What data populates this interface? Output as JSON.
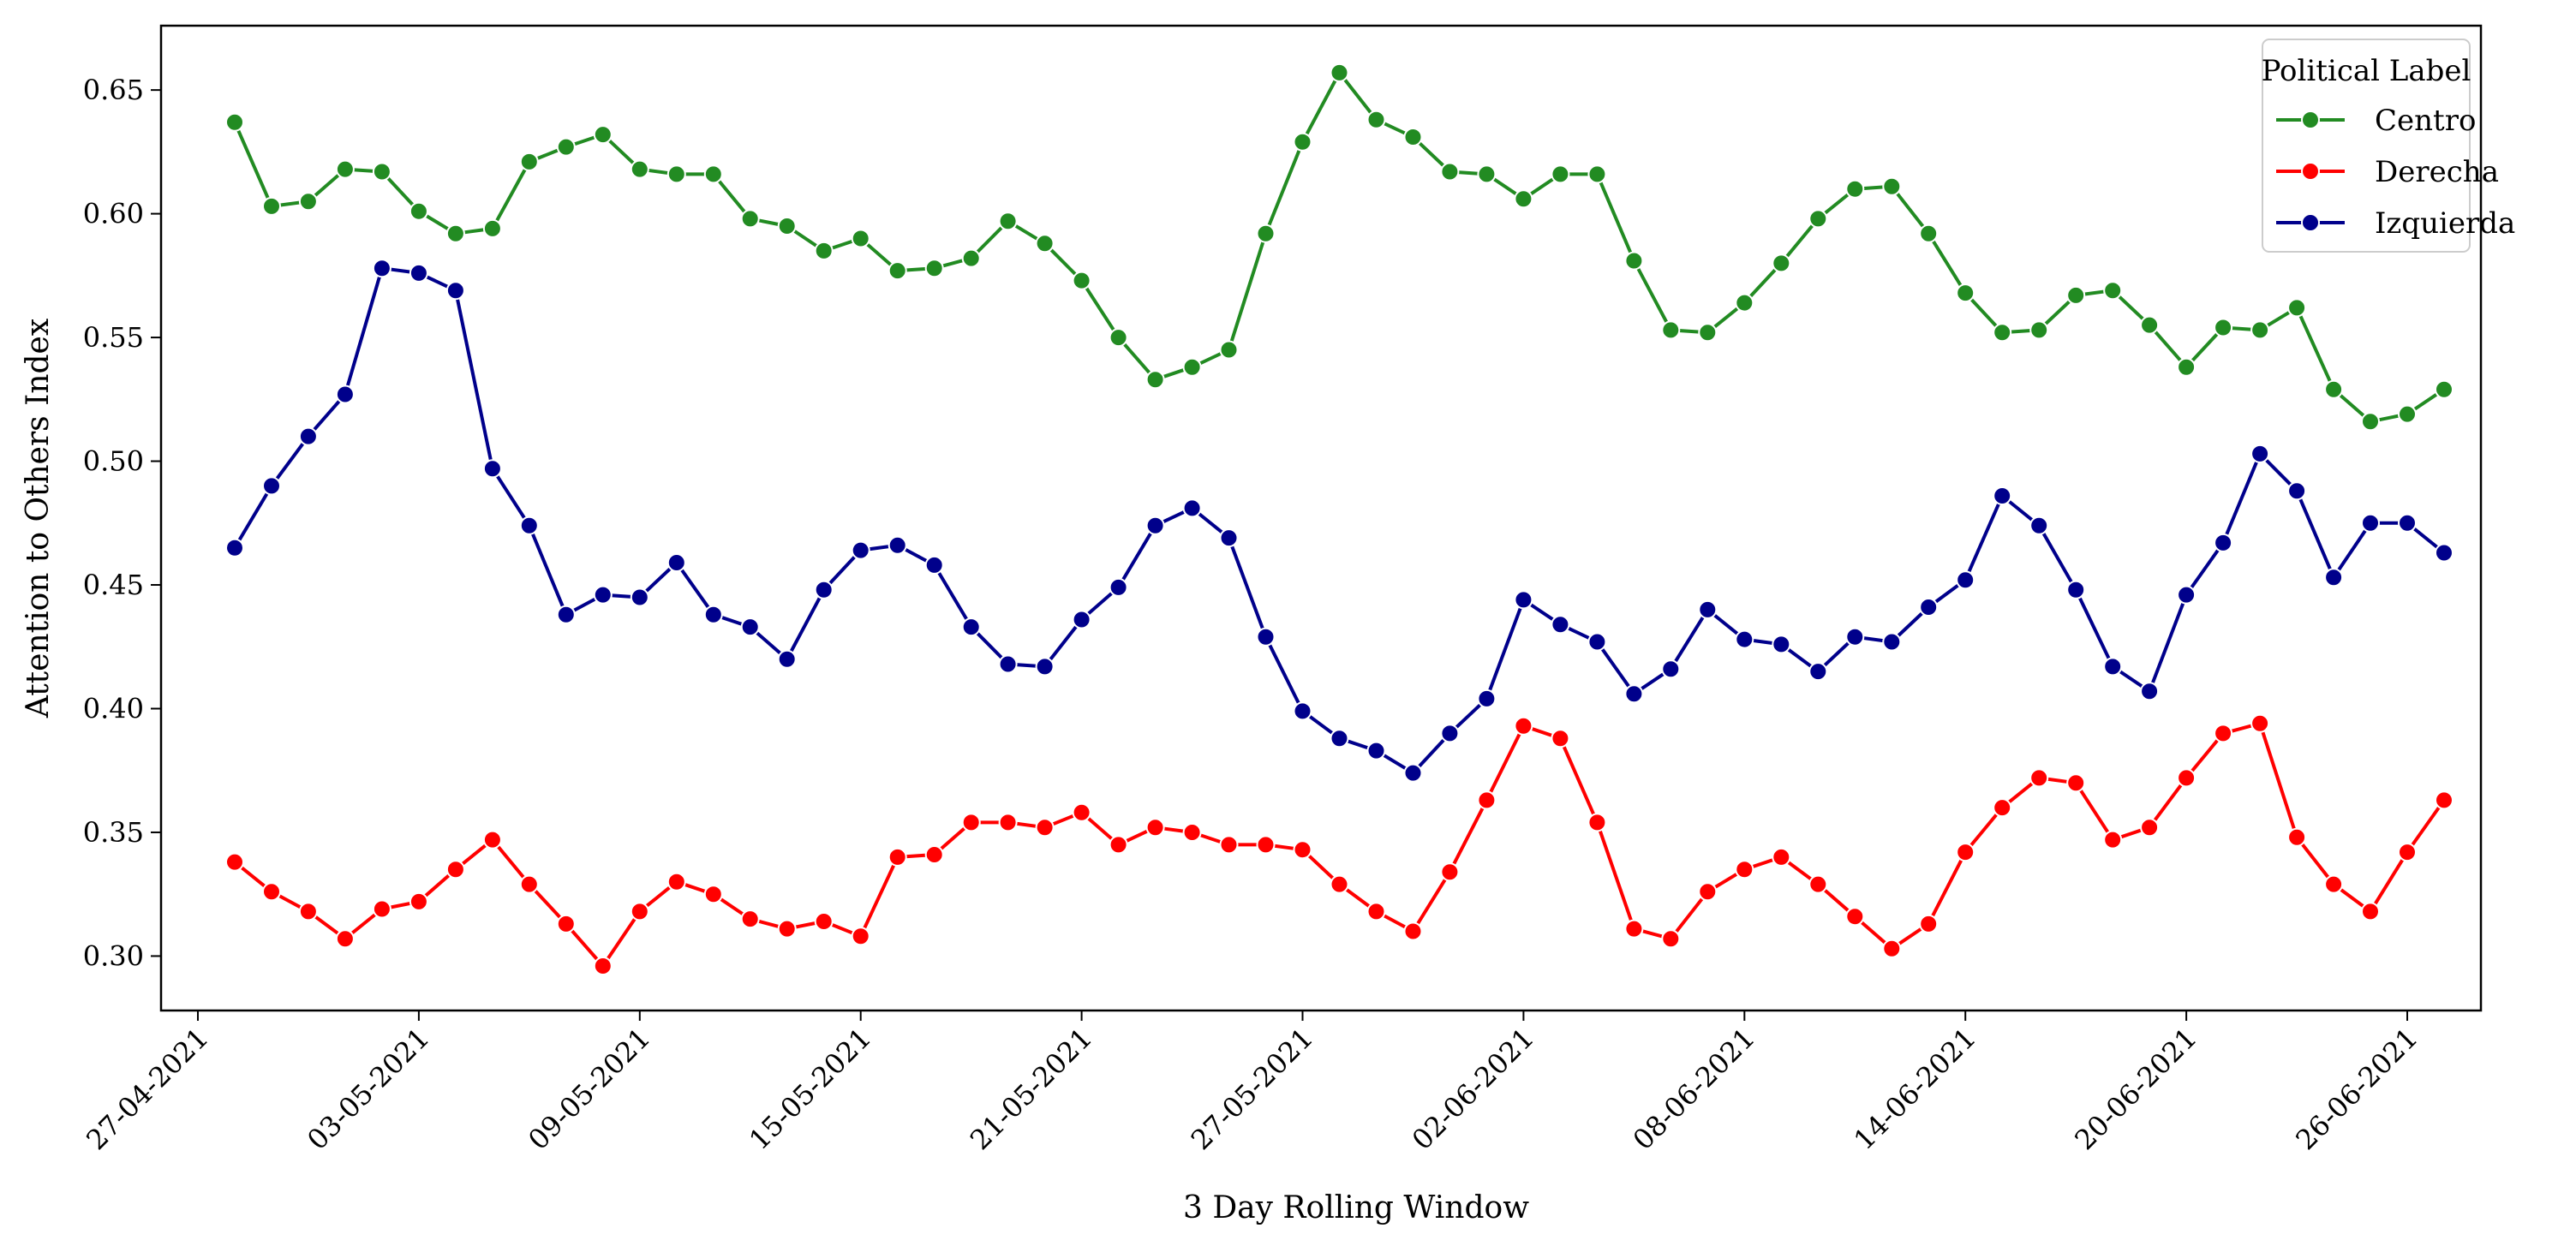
{
  "chart_data": {
    "type": "line",
    "xlabel": "3 Day Rolling Window",
    "ylabel": "Attention to Others Index",
    "x_start": "28-04-2021",
    "x_step_days": 1,
    "x_range": [
      "26-04-2021",
      "28-06-2021"
    ],
    "ylim": [
      0.278,
      0.676
    ],
    "x_ticks": [
      "27-04-2021",
      "03-05-2021",
      "09-05-2021",
      "15-05-2021",
      "21-05-2021",
      "27-05-2021",
      "02-06-2021",
      "08-06-2021",
      "14-06-2021",
      "20-06-2021",
      "26-06-2021"
    ],
    "y_ticks": [
      "0.30",
      "0.35",
      "0.40",
      "0.45",
      "0.50",
      "0.55",
      "0.60",
      "0.65"
    ],
    "grid": false,
    "legend": {
      "title": "Political Label",
      "position": "top-right"
    },
    "series": [
      {
        "name": "Centro",
        "color": "#228b22",
        "values": [
          0.637,
          0.603,
          0.605,
          0.618,
          0.617,
          0.601,
          0.592,
          0.594,
          0.621,
          0.627,
          0.632,
          0.618,
          0.616,
          0.616,
          0.598,
          0.595,
          0.585,
          0.59,
          0.577,
          0.578,
          0.582,
          0.597,
          0.588,
          0.573,
          0.55,
          0.533,
          0.538,
          0.545,
          0.592,
          0.629,
          0.657,
          0.638,
          0.631,
          0.617,
          0.616,
          0.606,
          0.616,
          0.616,
          0.581,
          0.553,
          0.552,
          0.564,
          0.58,
          0.598,
          0.61,
          0.611,
          0.592,
          0.568,
          0.552,
          0.553,
          0.567,
          0.569,
          0.555,
          0.538,
          0.554,
          0.553,
          0.562,
          0.529,
          0.516,
          0.519,
          0.529
        ]
      },
      {
        "name": "Derecha",
        "color": "#ff0000",
        "values": [
          0.338,
          0.326,
          0.318,
          0.307,
          0.319,
          0.322,
          0.335,
          0.347,
          0.329,
          0.313,
          0.296,
          0.318,
          0.33,
          0.325,
          0.315,
          0.311,
          0.314,
          0.308,
          0.34,
          0.341,
          0.354,
          0.354,
          0.352,
          0.358,
          0.345,
          0.352,
          0.35,
          0.345,
          0.345,
          0.343,
          0.329,
          0.318,
          0.31,
          0.334,
          0.363,
          0.393,
          0.388,
          0.354,
          0.311,
          0.307,
          0.326,
          0.335,
          0.34,
          0.329,
          0.316,
          0.303,
          0.313,
          0.342,
          0.36,
          0.372,
          0.37,
          0.347,
          0.352,
          0.372,
          0.39,
          0.394,
          0.348,
          0.329,
          0.318,
          0.342,
          0.363
        ]
      },
      {
        "name": "Izquierda",
        "color": "#00008b",
        "values": [
          0.465,
          0.49,
          0.51,
          0.527,
          0.578,
          0.576,
          0.569,
          0.497,
          0.474,
          0.438,
          0.446,
          0.445,
          0.459,
          0.438,
          0.433,
          0.42,
          0.448,
          0.464,
          0.466,
          0.458,
          0.433,
          0.418,
          0.417,
          0.436,
          0.449,
          0.474,
          0.481,
          0.469,
          0.429,
          0.399,
          0.388,
          0.383,
          0.374,
          0.39,
          0.404,
          0.444,
          0.434,
          0.427,
          0.406,
          0.416,
          0.44,
          0.428,
          0.426,
          0.415,
          0.429,
          0.427,
          0.441,
          0.452,
          0.486,
          0.474,
          0.448,
          0.417,
          0.407,
          0.446,
          0.467,
          0.503,
          0.488,
          0.453,
          0.475,
          0.475,
          0.463
        ]
      }
    ]
  }
}
